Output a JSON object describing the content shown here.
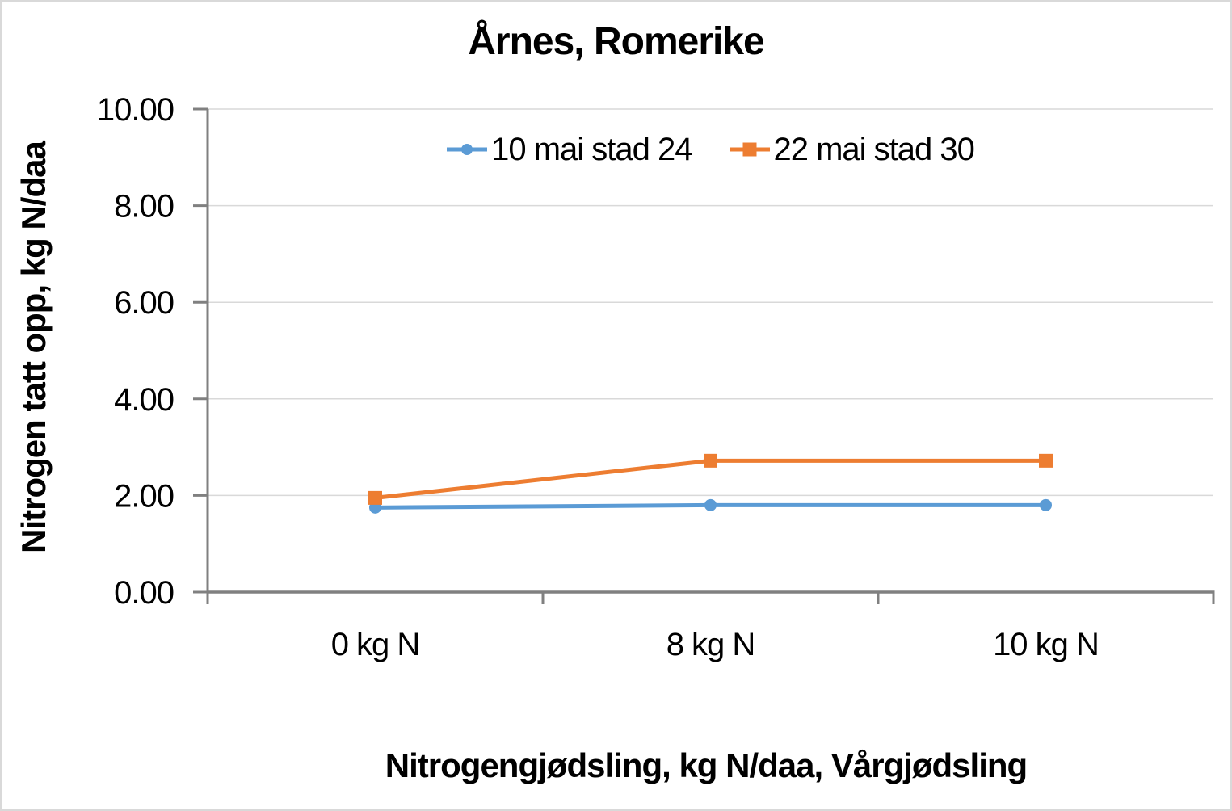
{
  "window": {
    "background": "#FFFFFF",
    "border_color": "#D9D9D9"
  },
  "chart_data": {
    "type": "line",
    "title": "Årnes, Romerike",
    "categories": [
      "0 kg N",
      "8 kg N",
      "10 kg N"
    ],
    "series": [
      {
        "name": "10 mai stad 24",
        "color": "#5B9BD5",
        "marker": "circle",
        "values": [
          1.75,
          1.8,
          1.8
        ]
      },
      {
        "name": "22 mai stad 30",
        "color": "#ED7D31",
        "marker": "square",
        "values": [
          1.95,
          2.72,
          2.72
        ]
      },
      {
        "name": "",
        "color": "",
        "marker": "",
        "values": []
      }
    ],
    "xlabel": "Nitrogengjødsling, kg N/daa, Vårgjødsling",
    "ylabel": "Nitrogen tatt opp, kg N/daa",
    "ylim": [
      0,
      10
    ],
    "ytick_step": 2,
    "ytick_labels": [
      "0.00",
      "2.00",
      "4.00",
      "6.00",
      "8.00",
      "10.00"
    ],
    "grid": true,
    "legend_position": "top-center",
    "axis_color": "#808080",
    "gridline_color": "#D9D9D9",
    "text_color": "#000000"
  }
}
